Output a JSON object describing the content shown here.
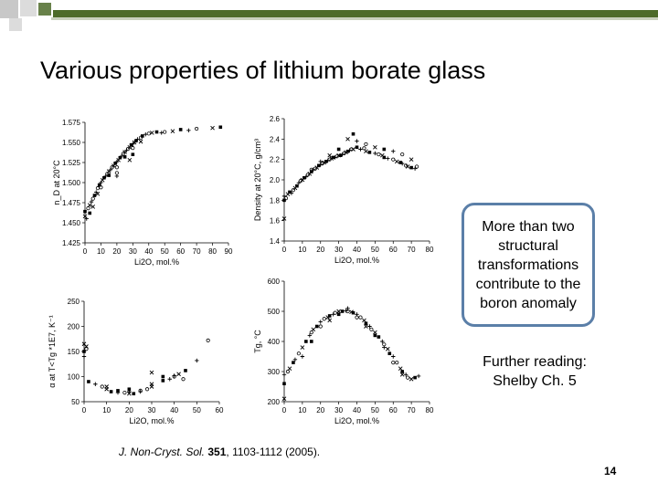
{
  "slide": {
    "title": "Various properties of lithium borate glass",
    "callout": "More than two structural transformations contribute to the boron anomaly",
    "further_reading": "Further reading: Shelby Ch. 5",
    "citation": {
      "journal": "J. Non-Cryst. Sol.",
      "volume": "351",
      "pages": ", 1103-1112 (2005)."
    },
    "page_number": "14",
    "colors": {
      "accent_green": "#4d6b2a",
      "accent_gray": "#9a9a9a",
      "callout_border": "#5b7fa8"
    }
  },
  "chart_data": [
    {
      "type": "scatter",
      "ylabel": "n_D at 20°C",
      "xlabel": "Li2O, mol.%",
      "xlim": [
        0,
        90
      ],
      "ylim": [
        1.425,
        1.575
      ],
      "xticks": [
        "0",
        "10",
        "20",
        "30",
        "40",
        "50",
        "60",
        "70",
        "80",
        "90"
      ],
      "yticks": [
        "1.425",
        "1.450",
        "1.475",
        "1.500",
        "1.525",
        "1.550",
        "1.575"
      ],
      "points": [
        [
          0,
          1.458
        ],
        [
          0,
          1.464
        ],
        [
          1,
          1.455
        ],
        [
          2,
          1.468
        ],
        [
          3,
          1.472
        ],
        [
          3,
          1.462
        ],
        [
          4,
          1.476
        ],
        [
          5,
          1.48
        ],
        [
          5,
          1.47
        ],
        [
          6,
          1.484
        ],
        [
          7,
          1.488
        ],
        [
          8,
          1.493
        ],
        [
          8,
          1.486
        ],
        [
          9,
          1.497
        ],
        [
          10,
          1.5
        ],
        [
          10,
          1.494
        ],
        [
          11,
          1.503
        ],
        [
          12,
          1.506
        ],
        [
          13,
          1.508
        ],
        [
          14,
          1.511
        ],
        [
          15,
          1.514
        ],
        [
          15,
          1.509
        ],
        [
          16,
          1.516
        ],
        [
          17,
          1.519
        ],
        [
          18,
          1.521
        ],
        [
          19,
          1.524
        ],
        [
          20,
          1.526
        ],
        [
          20,
          1.519
        ],
        [
          21,
          1.528
        ],
        [
          22,
          1.531
        ],
        [
          23,
          1.533
        ],
        [
          24,
          1.536
        ],
        [
          25,
          1.538
        ],
        [
          25,
          1.532
        ],
        [
          26,
          1.54
        ],
        [
          27,
          1.542
        ],
        [
          28,
          1.544
        ],
        [
          29,
          1.547
        ],
        [
          30,
          1.548
        ],
        [
          30,
          1.543
        ],
        [
          31,
          1.55
        ],
        [
          32,
          1.552
        ],
        [
          33,
          1.554
        ],
        [
          35,
          1.556
        ],
        [
          35,
          1.551
        ],
        [
          36,
          1.558
        ],
        [
          38,
          1.56
        ],
        [
          40,
          1.561
        ],
        [
          42,
          1.562
        ],
        [
          45,
          1.563
        ],
        [
          48,
          1.562
        ],
        [
          50,
          1.563
        ],
        [
          55,
          1.564
        ],
        [
          60,
          1.566
        ],
        [
          65,
          1.565
        ],
        [
          70,
          1.567
        ],
        [
          80,
          1.568
        ],
        [
          85,
          1.569
        ],
        [
          20,
          1.508
        ],
        [
          20,
          1.512
        ],
        [
          28,
          1.528
        ],
        [
          30,
          1.535
        ]
      ]
    },
    {
      "type": "scatter",
      "ylabel": "Density at 20°C, g/cm³",
      "xlabel": "Li2O, mol.%",
      "xlim": [
        0,
        80
      ],
      "ylim": [
        1.4,
        2.6
      ],
      "xticks": [
        "0",
        "10",
        "20",
        "30",
        "40",
        "50",
        "60",
        "70",
        "80"
      ],
      "yticks": [
        "1.4",
        "1.6",
        "1.8",
        "2.0",
        "2.2",
        "2.4",
        "2.6"
      ],
      "points": [
        [
          0,
          1.62
        ],
        [
          0,
          1.8
        ],
        [
          0,
          1.84
        ],
        [
          1,
          1.82
        ],
        [
          2,
          1.86
        ],
        [
          3,
          1.88
        ],
        [
          4,
          1.87
        ],
        [
          5,
          1.9
        ],
        [
          6,
          1.92
        ],
        [
          7,
          1.94
        ],
        [
          8,
          1.97
        ],
        [
          9,
          1.99
        ],
        [
          10,
          2.0
        ],
        [
          11,
          2.02
        ],
        [
          12,
          2.03
        ],
        [
          13,
          2.05
        ],
        [
          14,
          2.06
        ],
        [
          15,
          2.08
        ],
        [
          16,
          2.1
        ],
        [
          17,
          2.11
        ],
        [
          18,
          2.12
        ],
        [
          19,
          2.14
        ],
        [
          20,
          2.15
        ],
        [
          21,
          2.16
        ],
        [
          22,
          2.17
        ],
        [
          23,
          2.18
        ],
        [
          24,
          2.19
        ],
        [
          25,
          2.2
        ],
        [
          26,
          2.21
        ],
        [
          27,
          2.22
        ],
        [
          28,
          2.22
        ],
        [
          29,
          2.23
        ],
        [
          30,
          2.24
        ],
        [
          31,
          2.24
        ],
        [
          32,
          2.25
        ],
        [
          33,
          2.26
        ],
        [
          34,
          2.27
        ],
        [
          35,
          2.28
        ],
        [
          36,
          2.29
        ],
        [
          37,
          2.3
        ],
        [
          38,
          2.3
        ],
        [
          40,
          2.32
        ],
        [
          42,
          2.3
        ],
        [
          44,
          2.31
        ],
        [
          45,
          2.28
        ],
        [
          47,
          2.27
        ],
        [
          50,
          2.26
        ],
        [
          52,
          2.25
        ],
        [
          54,
          2.24
        ],
        [
          55,
          2.22
        ],
        [
          57,
          2.21
        ],
        [
          60,
          2.2
        ],
        [
          62,
          2.18
        ],
        [
          64,
          2.17
        ],
        [
          65,
          2.16
        ],
        [
          67,
          2.14
        ],
        [
          68,
          2.13
        ],
        [
          70,
          2.12
        ],
        [
          72,
          2.11
        ],
        [
          73,
          2.13
        ],
        [
          35,
          2.4
        ],
        [
          38,
          2.45
        ],
        [
          40,
          2.38
        ],
        [
          45,
          2.35
        ],
        [
          50,
          2.32
        ],
        [
          55,
          2.3
        ],
        [
          60,
          2.28
        ],
        [
          65,
          2.25
        ],
        [
          70,
          2.2
        ],
        [
          30,
          2.3
        ],
        [
          20,
          2.18
        ],
        [
          15,
          2.1
        ],
        [
          25,
          2.24
        ]
      ]
    },
    {
      "type": "scatter",
      "ylabel": "α at T<Tg *1E7, K⁻¹",
      "xlabel": "Li2O, mol.%",
      "xlim": [
        0,
        60
      ],
      "ylim": [
        50,
        250
      ],
      "xticks": [
        "0",
        "10",
        "20",
        "30",
        "40",
        "50",
        "60"
      ],
      "yticks": [
        "50",
        "100",
        "150",
        "200",
        "250"
      ],
      "points": [
        [
          0,
          165
        ],
        [
          0,
          150
        ],
        [
          0,
          140
        ],
        [
          1,
          155
        ],
        [
          1,
          160
        ],
        [
          2,
          90
        ],
        [
          5,
          85
        ],
        [
          8,
          80
        ],
        [
          10,
          75
        ],
        [
          12,
          70
        ],
        [
          15,
          68
        ],
        [
          18,
          68
        ],
        [
          20,
          66
        ],
        [
          22,
          66
        ],
        [
          25,
          70
        ],
        [
          28,
          75
        ],
        [
          30,
          80
        ],
        [
          35,
          92
        ],
        [
          38,
          95
        ],
        [
          40,
          100
        ],
        [
          42,
          105
        ],
        [
          45,
          112
        ],
        [
          50,
          132
        ],
        [
          55,
          172
        ],
        [
          10,
          80
        ],
        [
          15,
          72
        ],
        [
          20,
          70
        ],
        [
          25,
          72
        ],
        [
          30,
          85
        ],
        [
          35,
          100
        ],
        [
          40,
          102
        ],
        [
          44,
          95
        ],
        [
          30,
          108
        ],
        [
          20,
          75
        ]
      ]
    },
    {
      "type": "scatter",
      "ylabel": "Tg, °C",
      "xlabel": "Li2O, mol.%",
      "xlim": [
        0,
        80
      ],
      "ylim": [
        200,
        600
      ],
      "xticks": [
        "0",
        "10",
        "20",
        "30",
        "40",
        "50",
        "60",
        "70",
        "80"
      ],
      "yticks": [
        "200",
        "300",
        "400",
        "500",
        "600"
      ],
      "points": [
        [
          0,
          210
        ],
        [
          0,
          260
        ],
        [
          0,
          290
        ],
        [
          2,
          300
        ],
        [
          3,
          310
        ],
        [
          5,
          330
        ],
        [
          6,
          340
        ],
        [
          8,
          360
        ],
        [
          10,
          380
        ],
        [
          12,
          400
        ],
        [
          14,
          420
        ],
        [
          15,
          430
        ],
        [
          16,
          440
        ],
        [
          18,
          450
        ],
        [
          20,
          465
        ],
        [
          22,
          475
        ],
        [
          24,
          480
        ],
        [
          25,
          485
        ],
        [
          27,
          490
        ],
        [
          28,
          495
        ],
        [
          30,
          500
        ],
        [
          32,
          500
        ],
        [
          34,
          502
        ],
        [
          35,
          500
        ],
        [
          37,
          498
        ],
        [
          38,
          495
        ],
        [
          40,
          490
        ],
        [
          42,
          480
        ],
        [
          44,
          470
        ],
        [
          45,
          460
        ],
        [
          47,
          450
        ],
        [
          48,
          440
        ],
        [
          50,
          430
        ],
        [
          52,
          415
        ],
        [
          54,
          400
        ],
        [
          55,
          390
        ],
        [
          57,
          375
        ],
        [
          58,
          360
        ],
        [
          60,
          350
        ],
        [
          62,
          330
        ],
        [
          64,
          310
        ],
        [
          65,
          300
        ],
        [
          67,
          290
        ],
        [
          68,
          280
        ],
        [
          70,
          275
        ],
        [
          72,
          280
        ],
        [
          74,
          285
        ],
        [
          20,
          450
        ],
        [
          25,
          470
        ],
        [
          30,
          490
        ],
        [
          35,
          510
        ],
        [
          40,
          480
        ],
        [
          45,
          450
        ],
        [
          50,
          420
        ],
        [
          55,
          380
        ],
        [
          60,
          330
        ],
        [
          65,
          290
        ],
        [
          15,
          400
        ],
        [
          10,
          350
        ]
      ]
    }
  ]
}
